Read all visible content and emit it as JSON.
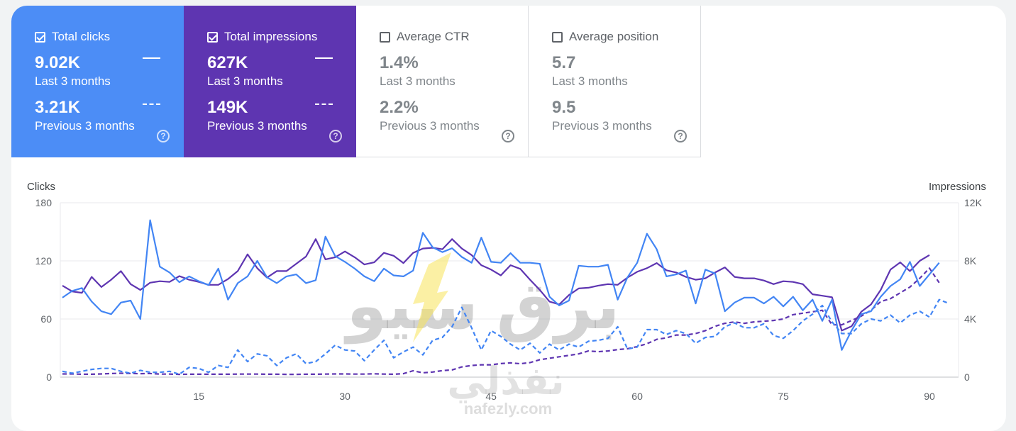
{
  "metrics": [
    {
      "label": "Total clicks",
      "checked": true,
      "current_value": "9.02K",
      "current_period": "Last 3 months",
      "previous_value": "3.21K",
      "previous_period": "Previous 3 months",
      "help_icon": "question-circle-icon",
      "color": "#4c8df6"
    },
    {
      "label": "Total impressions",
      "checked": true,
      "current_value": "627K",
      "current_period": "Last 3 months",
      "previous_value": "149K",
      "previous_period": "Previous 3 months",
      "help_icon": "question-circle-icon",
      "color": "#5e35b1"
    },
    {
      "label": "Average CTR",
      "checked": false,
      "current_value": "1.4%",
      "current_period": "Last 3 months",
      "previous_value": "2.2%",
      "previous_period": "Previous 3 months",
      "help_icon": "question-circle-icon"
    },
    {
      "label": "Average position",
      "checked": false,
      "current_value": "5.7",
      "current_period": "Last 3 months",
      "previous_value": "9.5",
      "previous_period": "Previous 3 months",
      "help_icon": "question-circle-icon"
    }
  ],
  "help_glyph": "?",
  "watermark": {
    "arabic_top": "برق سيو",
    "arabic_bottom": "نفذلي",
    "latin": "nafezly.com"
  },
  "chart_data": {
    "type": "line",
    "y_left_label": "Clicks",
    "y_right_label": "Impressions",
    "y_left_ticks": [
      "180",
      "120",
      "60",
      "0"
    ],
    "y_right_ticks": [
      "12K",
      "8K",
      "4K",
      "0"
    ],
    "y_left_range": [
      0,
      180
    ],
    "y_right_range": [
      0,
      12000
    ],
    "x_range": [
      1,
      90
    ],
    "x_tick_values": [
      15,
      30,
      45,
      60,
      75,
      90
    ],
    "x_tick_labels": [
      "15",
      "30",
      "45",
      "60",
      "75",
      "90"
    ],
    "grid": true,
    "series": [
      {
        "metric": "clicks",
        "period": "last 3 months",
        "axis": "left",
        "color": "#4285f4",
        "dashed": false,
        "values": [
          82,
          89,
          92,
          78,
          68,
          65,
          77,
          79,
          60,
          162,
          114,
          108,
          98,
          104,
          99,
          95,
          112,
          80,
          97,
          104,
          120,
          103,
          97,
          104,
          106,
          97,
          100,
          145,
          125,
          119,
          112,
          104,
          99,
          112,
          105,
          104,
          110,
          149,
          134,
          129,
          133,
          124,
          118,
          144,
          119,
          118,
          128,
          118,
          118,
          117,
          83,
          74,
          79,
          115,
          114,
          114,
          116,
          80,
          103,
          118,
          148,
          132,
          104,
          106,
          110,
          76,
          111,
          107,
          68,
          77,
          82,
          82,
          76,
          83,
          73,
          83,
          69,
          80,
          58,
          80,
          28,
          48,
          65,
          68,
          83,
          94,
          101,
          119,
          94,
          106,
          118
        ]
      },
      {
        "metric": "impressions",
        "period": "last 3 months",
        "axis": "right",
        "color": "#5e35b1",
        "dashed": false,
        "values": [
          6300,
          5900,
          5800,
          6900,
          6200,
          6700,
          7300,
          6400,
          6000,
          6500,
          6600,
          6550,
          6950,
          6700,
          6550,
          6350,
          6350,
          6750,
          7300,
          8450,
          7500,
          6850,
          7300,
          7300,
          7800,
          8300,
          9500,
          8100,
          8250,
          8650,
          8250,
          7750,
          7900,
          8550,
          8350,
          7850,
          8550,
          8850,
          8900,
          8800,
          9500,
          8850,
          8400,
          7700,
          7400,
          7000,
          7700,
          7450,
          6700,
          6000,
          5200,
          5000,
          5650,
          6100,
          6150,
          6300,
          6400,
          6350,
          6850,
          7250,
          7500,
          7850,
          7350,
          7200,
          6900,
          6700,
          6800,
          7200,
          7550,
          6900,
          6800,
          6800,
          6650,
          6400,
          6600,
          6550,
          6400,
          5700,
          5600,
          5500,
          3200,
          3500,
          4500,
          5000,
          6000,
          7400,
          7900,
          7300,
          8000,
          8400
        ]
      },
      {
        "metric": "clicks",
        "period": "previous 3 months",
        "axis": "left",
        "color": "#4285f4",
        "dashed": true,
        "values": [
          6,
          4,
          6,
          8,
          9,
          9,
          6,
          4,
          7,
          5,
          5,
          6,
          3,
          10,
          9,
          5,
          12,
          10,
          28,
          16,
          24,
          22,
          12,
          20,
          24,
          14,
          16,
          24,
          33,
          28,
          27,
          17,
          28,
          38,
          20,
          26,
          31,
          23,
          38,
          41,
          52,
          72,
          51,
          28,
          48,
          42,
          34,
          28,
          35,
          25,
          34,
          28,
          34,
          31,
          37,
          38,
          40,
          52,
          29,
          31,
          49,
          49,
          44,
          48,
          45,
          35,
          41,
          42,
          52,
          56,
          51,
          51,
          55,
          43,
          40,
          48,
          58,
          65,
          74,
          57,
          45,
          45,
          55,
          60,
          58,
          64,
          56,
          64,
          68,
          62,
          80,
          76
        ]
      },
      {
        "metric": "impressions",
        "period": "previous 3 months",
        "axis": "right",
        "color": "#5e35b1",
        "dashed": true,
        "values": [
          220,
          220,
          200,
          200,
          220,
          250,
          270,
          250,
          240,
          250,
          210,
          210,
          190,
          200,
          200,
          200,
          200,
          200,
          210,
          210,
          210,
          200,
          200,
          190,
          190,
          200,
          200,
          210,
          220,
          220,
          210,
          210,
          230,
          210,
          200,
          240,
          440,
          300,
          350,
          450,
          500,
          700,
          800,
          850,
          850,
          930,
          980,
          920,
          1000,
          1200,
          1300,
          1400,
          1500,
          1600,
          1800,
          1750,
          1800,
          1900,
          1950,
          2100,
          2300,
          2600,
          2700,
          2900,
          2900,
          3000,
          3200,
          3500,
          3700,
          3800,
          3700,
          3800,
          3850,
          3900,
          4000,
          4300,
          4400,
          4500,
          4600,
          3600,
          3600,
          3900,
          4200,
          4600,
          5200,
          5400,
          5800,
          6200,
          6800,
          7500,
          6500
        ]
      }
    ]
  }
}
